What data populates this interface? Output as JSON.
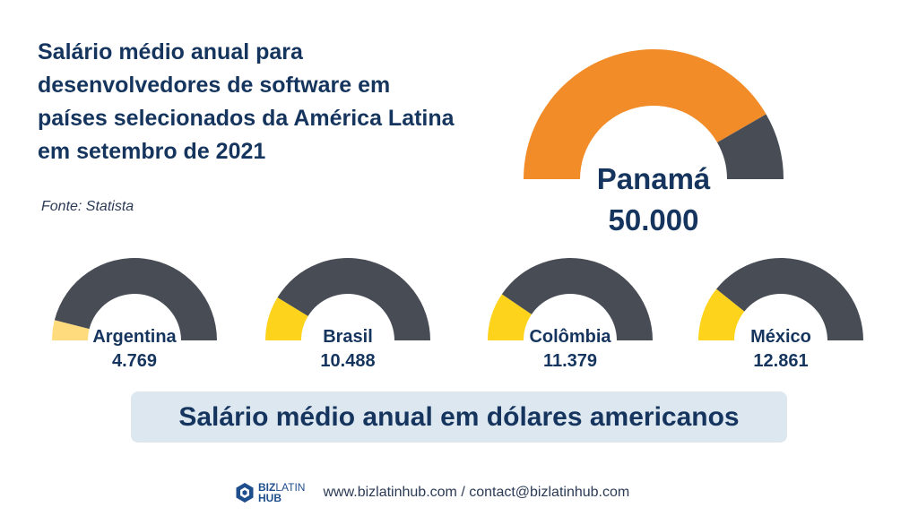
{
  "title": "Salário médio anual para desenvolvedores de software em países selecionados da América Latina em setembro de 2021",
  "source": "Fonte: Statista",
  "subtitle_box": "Salário médio anual em dólares americanos",
  "footer": {
    "logo_biz": "BIZ",
    "logo_latin": "LATIN",
    "logo_hub": "HUB",
    "contact": "www.bizlatinhub.com / contact@bizlatinhub.com"
  },
  "colors": {
    "dark": "#474c55",
    "orange": "#f28c28",
    "yellow": "#fdd31c",
    "light_yellow": "#fedb7d",
    "title": "#15355e"
  },
  "chart_data": {
    "type": "gauge",
    "max": 60000,
    "main": {
      "label": "Panamá",
      "value_label": "50.000",
      "value": 50000,
      "color": "#f28c28"
    },
    "items": [
      {
        "label": "Argentina",
        "value_label": "4.769",
        "value": 4769,
        "color": "#fedb7d"
      },
      {
        "label": "Brasil",
        "value_label": "10.488",
        "value": 10488,
        "color": "#fdd31c"
      },
      {
        "label": "Colômbia",
        "value_label": "11.379",
        "value": 11379,
        "color": "#fdd31c"
      },
      {
        "label": "México",
        "value_label": "12.861",
        "value": 12861,
        "color": "#fdd31c"
      }
    ]
  }
}
